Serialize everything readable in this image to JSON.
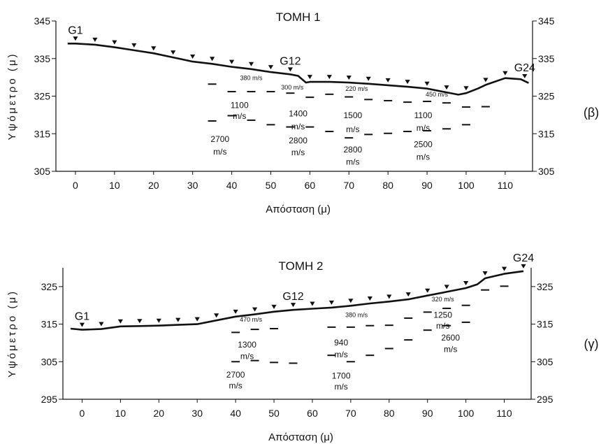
{
  "chart_data": [
    {
      "type": "line",
      "title": "ΤΟΜΗ 1",
      "xlabel": "Απόσταση (μ)",
      "ylabel": "Υψόμετρο (μ)",
      "panel_label": "(β)",
      "xlim": [
        -5,
        117
      ],
      "ylim": [
        305,
        345
      ],
      "xticks": [
        0,
        10,
        20,
        30,
        40,
        50,
        60,
        70,
        80,
        90,
        100,
        110
      ],
      "yticks": [
        305,
        315,
        325,
        335,
        345
      ],
      "grid": false,
      "surface": {
        "x": [
          -2,
          0,
          5,
          10,
          15,
          20,
          25,
          30,
          35,
          40,
          45,
          50,
          55,
          57,
          58,
          59,
          60,
          65,
          70,
          75,
          80,
          85,
          90,
          95,
          98,
          100,
          103,
          105,
          110,
          114,
          116
        ],
        "y": [
          339,
          339,
          338.7,
          338,
          337.2,
          336.4,
          335.3,
          334.2,
          333.6,
          332.8,
          332.2,
          331.4,
          330.8,
          330.4,
          329.5,
          328.6,
          328.8,
          328.8,
          328.6,
          328.3,
          327.9,
          327.5,
          327,
          326,
          325.4,
          325.8,
          327,
          328,
          329.8,
          329.5,
          328.5
        ]
      },
      "geophones": {
        "x": [
          0,
          5,
          10,
          15,
          20,
          25,
          30,
          35,
          40,
          45,
          50,
          55,
          60,
          65,
          70,
          75,
          80,
          85,
          90,
          95,
          100,
          105,
          110,
          115
        ]
      },
      "point_labels": [
        {
          "text": "G1",
          "x": 0
        },
        {
          "text": "G12",
          "x": 55
        },
        {
          "text": "G24",
          "x": 115
        }
      ],
      "refractor_1": {
        "x": [
          35,
          40,
          45,
          50,
          55,
          60,
          65,
          70,
          75,
          80,
          85,
          90,
          95,
          100,
          105
        ],
        "y": [
          328.2,
          326.2,
          326.2,
          326.2,
          325.8,
          324.7,
          325.5,
          324.8,
          324.1,
          323.8,
          323.4,
          323.6,
          323.2,
          322.1,
          322.2
        ]
      },
      "refractor_2": {
        "x": [
          35,
          40,
          45,
          50,
          55,
          60,
          65,
          70,
          75,
          80,
          85,
          90,
          95,
          100
        ],
        "y": [
          318.4,
          319.8,
          318.6,
          317.4,
          316.8,
          316.8,
          315.6,
          313.9,
          314.8,
          315.1,
          315.6,
          315.8,
          316.3,
          317.4
        ]
      },
      "velocities": [
        {
          "text": "380 m/s",
          "x": 45,
          "y": 329.3,
          "size": "small"
        },
        {
          "text": "300 m/s",
          "x": 55.5,
          "y": 326.8,
          "size": "small"
        },
        {
          "text": "220 m/s",
          "x": 72,
          "y": 326.4,
          "size": "small"
        },
        {
          "text": "450 m/s",
          "x": 92.5,
          "y": 324.9,
          "size": "small"
        },
        {
          "text": "1100",
          "x": 42,
          "y": 321.8,
          "size": "normal"
        },
        {
          "text": "m/s",
          "x": 42,
          "y": 319,
          "size": "normal"
        },
        {
          "text": "1400",
          "x": 57,
          "y": 319.6,
          "size": "normal"
        },
        {
          "text": "m/s",
          "x": 57,
          "y": 316.2,
          "size": "normal"
        },
        {
          "text": "1500",
          "x": 71,
          "y": 319.1,
          "size": "normal"
        },
        {
          "text": "m/s",
          "x": 71,
          "y": 315.4,
          "size": "normal"
        },
        {
          "text": "1100",
          "x": 89,
          "y": 319.1,
          "size": "normal"
        },
        {
          "text": "m/s",
          "x": 89,
          "y": 315.8,
          "size": "normal"
        },
        {
          "text": "2700",
          "x": 37,
          "y": 312.8,
          "size": "normal"
        },
        {
          "text": "m/s",
          "x": 37,
          "y": 309.5,
          "size": "normal"
        },
        {
          "text": "2800",
          "x": 57,
          "y": 312.4,
          "size": "normal"
        },
        {
          "text": "m/s",
          "x": 57,
          "y": 309.3,
          "size": "normal"
        },
        {
          "text": "2800",
          "x": 71,
          "y": 310,
          "size": "normal"
        },
        {
          "text": "m/s",
          "x": 71,
          "y": 306.8,
          "size": "normal"
        },
        {
          "text": "2500",
          "x": 89,
          "y": 311.4,
          "size": "normal"
        },
        {
          "text": "m/s",
          "x": 89,
          "y": 308.1,
          "size": "normal"
        }
      ]
    },
    {
      "type": "line",
      "title": "ΤΟΜΗ 2",
      "xlabel": "Απόσταση (μ)",
      "ylabel": "Υψόμετρο (μ)",
      "panel_label": "(γ)",
      "xlim": [
        -5,
        117
      ],
      "ylim": [
        295,
        330
      ],
      "xticks": [
        0,
        10,
        20,
        30,
        40,
        50,
        60,
        70,
        80,
        90,
        100,
        110
      ],
      "yticks": [
        295,
        305,
        315,
        325
      ],
      "grid": false,
      "surface": {
        "x": [
          -3,
          0,
          5,
          10,
          15,
          20,
          25,
          30,
          35,
          40,
          45,
          50,
          55,
          60,
          65,
          70,
          75,
          80,
          85,
          90,
          95,
          100,
          103,
          105,
          110,
          115
        ],
        "y": [
          313.8,
          313.5,
          313.7,
          314.4,
          314.5,
          314.6,
          314.8,
          315,
          316,
          317,
          317.6,
          318.3,
          318.8,
          319.1,
          319.4,
          319.9,
          320.5,
          321,
          321.6,
          322.6,
          323.6,
          324.6,
          325.6,
          327.2,
          328.4,
          329.1
        ]
      },
      "geophones": {
        "x": [
          0,
          5,
          10,
          15,
          20,
          25,
          30,
          35,
          40,
          45,
          50,
          55,
          60,
          65,
          70,
          75,
          80,
          85,
          90,
          95,
          100,
          105,
          110,
          115
        ]
      },
      "point_labels": [
        {
          "text": "G1",
          "x": 0
        },
        {
          "text": "G12",
          "x": 55
        },
        {
          "text": "G24",
          "x": 115
        }
      ],
      "refractor_1": {
        "x": [
          40,
          45,
          50,
          65,
          70,
          75,
          80,
          85,
          90,
          95,
          100,
          105,
          110
        ],
        "y": [
          312.8,
          313.6,
          313.8,
          314.2,
          314.2,
          314.6,
          314.7,
          316.6,
          318.2,
          319.2,
          320,
          324.1,
          325.1
        ]
      },
      "refractor_2": {
        "x": [
          40,
          45,
          50,
          55,
          65,
          70,
          75,
          80,
          85,
          90,
          95,
          100
        ],
        "y": [
          305,
          305.3,
          304.8,
          304.6,
          306.7,
          305,
          306.7,
          308.5,
          310.8,
          313.4,
          314.6,
          315.5
        ]
      },
      "velocities": [
        {
          "text": "470 m/s",
          "x": 44,
          "y": 315.7,
          "size": "small"
        },
        {
          "text": "380 m/s",
          "x": 71.5,
          "y": 316.9,
          "size": "small"
        },
        {
          "text": "320 m/s",
          "x": 94,
          "y": 321.1,
          "size": "small"
        },
        {
          "text": "1250",
          "x": 94,
          "y": 316.7,
          "size": "normal"
        },
        {
          "text": "m/s",
          "x": 94,
          "y": 313.8,
          "size": "normal"
        },
        {
          "text": "1300",
          "x": 43,
          "y": 308.8,
          "size": "normal"
        },
        {
          "text": "m/s",
          "x": 43,
          "y": 305.7,
          "size": "normal"
        },
        {
          "text": "940",
          "x": 67.5,
          "y": 309.3,
          "size": "normal"
        },
        {
          "text": "m/s",
          "x": 67.5,
          "y": 306.2,
          "size": "normal"
        },
        {
          "text": "2600",
          "x": 96,
          "y": 310.6,
          "size": "normal"
        },
        {
          "text": "m/s",
          "x": 96,
          "y": 307.6,
          "size": "normal"
        },
        {
          "text": "2700",
          "x": 40,
          "y": 300.8,
          "size": "normal"
        },
        {
          "text": "m/s",
          "x": 40,
          "y": 297.9,
          "size": "normal"
        },
        {
          "text": "1700",
          "x": 67.5,
          "y": 300.5,
          "size": "normal"
        },
        {
          "text": "m/s",
          "x": 67.5,
          "y": 297.6,
          "size": "normal"
        }
      ]
    }
  ]
}
